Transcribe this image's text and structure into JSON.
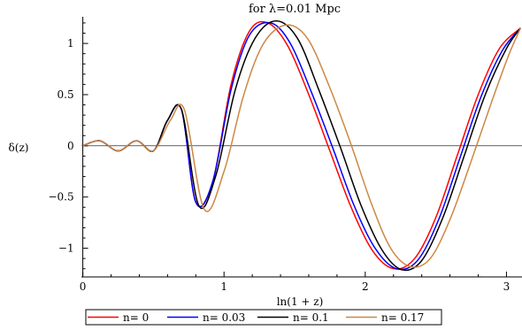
{
  "chart_data": {
    "type": "line",
    "title": "for λ=0.01 Mpc",
    "xlabel": "ln(1 + z)",
    "ylabel": "δ(z)",
    "xlim": [
      -0.01,
      3.11
    ],
    "ylim": [
      -1.28,
      1.26
    ],
    "xticks": [
      0,
      1,
      2,
      3
    ],
    "xtick_labels": [
      "0",
      "1",
      "2",
      "3"
    ],
    "yticks": [
      -1,
      -0.5,
      0,
      0.5,
      1
    ],
    "ytick_labels": [
      "−1",
      "−0.5",
      "0",
      "0.5",
      "1"
    ],
    "grid": false,
    "legend_position": "bottom",
    "series": [
      {
        "name": "n= 0",
        "color": "#ff0000",
        "x": [
          0,
          0.12,
          0.25,
          0.38,
          0.5,
          0.6,
          0.7,
          0.8,
          0.92,
          1.05,
          1.18,
          1.31,
          1.45,
          1.6,
          1.75,
          1.9,
          2.05,
          2.2,
          2.35,
          2.5,
          2.65,
          2.8,
          2.95,
          3.1
        ],
        "y": [
          0.0,
          0.05,
          -0.05,
          0.05,
          -0.05,
          0.25,
          0.35,
          -0.55,
          -0.35,
          0.6,
          1.12,
          1.2,
          0.98,
          0.5,
          -0.05,
          -0.6,
          -1.02,
          -1.2,
          -1.1,
          -0.7,
          -0.1,
          0.5,
          0.95,
          1.15
        ]
      },
      {
        "name": "n= 0.03",
        "color": "#0000ff",
        "x": [
          0,
          0.12,
          0.25,
          0.38,
          0.5,
          0.6,
          0.7,
          0.8,
          0.92,
          1.05,
          1.18,
          1.33,
          1.47,
          1.62,
          1.77,
          1.92,
          2.07,
          2.22,
          2.37,
          2.52,
          2.67,
          2.82,
          2.97,
          3.1
        ],
        "y": [
          0.0,
          0.05,
          -0.05,
          0.05,
          -0.05,
          0.25,
          0.35,
          -0.55,
          -0.35,
          0.55,
          1.08,
          1.2,
          1.0,
          0.52,
          -0.02,
          -0.58,
          -1.0,
          -1.2,
          -1.12,
          -0.72,
          -0.12,
          0.48,
          0.93,
          1.15
        ]
      },
      {
        "name": "n= 0.1",
        "color": "#000000",
        "x": [
          0,
          0.12,
          0.25,
          0.38,
          0.5,
          0.6,
          0.7,
          0.82,
          0.94,
          1.08,
          1.22,
          1.37,
          1.52,
          1.67,
          1.82,
          1.97,
          2.12,
          2.26,
          2.4,
          2.55,
          2.7,
          2.85,
          3.0,
          3.1
        ],
        "y": [
          0.0,
          0.05,
          -0.05,
          0.05,
          -0.05,
          0.25,
          0.35,
          -0.58,
          -0.3,
          0.55,
          1.05,
          1.22,
          1.05,
          0.55,
          0.0,
          -0.58,
          -1.02,
          -1.21,
          -1.12,
          -0.7,
          -0.1,
          0.5,
          0.95,
          1.15
        ]
      },
      {
        "name": "n= 0.17",
        "color": "#cc8844",
        "x": [
          0,
          0.12,
          0.25,
          0.38,
          0.5,
          0.62,
          0.72,
          0.86,
          1.0,
          1.14,
          1.28,
          1.44,
          1.59,
          1.74,
          1.89,
          2.04,
          2.18,
          2.32,
          2.46,
          2.6,
          2.75,
          2.9,
          3.02,
          3.1
        ],
        "y": [
          0.0,
          0.05,
          -0.05,
          0.05,
          -0.05,
          0.25,
          0.35,
          -0.62,
          -0.25,
          0.5,
          1.0,
          1.18,
          1.05,
          0.6,
          0.05,
          -0.55,
          -1.0,
          -1.18,
          -1.1,
          -0.72,
          -0.15,
          0.45,
          0.9,
          1.15
        ]
      }
    ]
  }
}
